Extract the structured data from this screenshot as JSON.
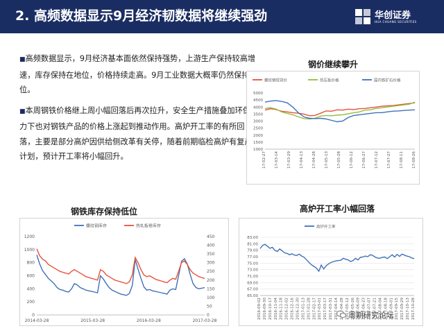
{
  "header": {
    "title": "2. 高频数据显示9月经济韧数据将继续强劲",
    "logo_name": "华创证券",
    "logo_sub": "HUA CHUANG SECURITIES"
  },
  "bullets": [
    "高频数据显示，9月经济基本面依然保持强势，上游生产保持较高增速，库存保持在地位，价格持续走高。9月工业数据大概率仍然保持高位。",
    "本周钢铁价格继上周小幅回落后再次拉升，安全生产措施叠加环保压力下也对钢铁产品的价格上涨起到推动作用。高炉开工率的有所回落，主要是部分高炉因供给侧改革有关停，随着前期临检高炉有复产计划，预计开工率将小幅回升。"
  ],
  "watermark": "周期研究论坛",
  "colors": {
    "banner": "#1a2d63",
    "series1": "#e8503a",
    "series2": "#8fbf3a",
    "series3": "#3f70b8"
  },
  "chart_data": [
    {
      "type": "line",
      "title": "钢价继续攀升",
      "series": [
        {
          "name": "螺纹钢现货价",
          "color": "#e8503a",
          "values": [
            3780,
            3880,
            3820,
            3700,
            3650,
            3600,
            3560,
            3500,
            3380,
            3400,
            3560,
            3720,
            3700,
            3800,
            3780,
            3850,
            3820,
            3880,
            3900,
            3950,
            4000,
            4050,
            4080,
            4100,
            4150,
            4200,
            4250,
            4300
          ]
        },
        {
          "name": "热压板价格",
          "color": "#8fbf3a",
          "values": [
            3900,
            3950,
            3850,
            3650,
            3550,
            3450,
            3300,
            3180,
            3150,
            3200,
            3350,
            3400,
            3380,
            3420,
            3450,
            3520,
            3600,
            3650,
            3780,
            3800,
            3900,
            3950,
            4000,
            4050,
            4100,
            4150,
            4200,
            4350
          ]
        },
        {
          "name": "国内铁矿石价格",
          "color": "#3f70b8",
          "values": [
            4350,
            4420,
            4450,
            4400,
            4300,
            4000,
            3600,
            3300,
            3200,
            3180,
            3200,
            3150,
            3050,
            2950,
            3000,
            3250,
            3400,
            3450,
            3500,
            3550,
            3600,
            3600,
            3650,
            3700,
            3720,
            3750,
            3780,
            3800
          ]
        }
      ],
      "x_ticks": [
        "17-02-27",
        "17-03-14",
        "17-03-29",
        "17-04-13",
        "17-04-28",
        "17-05-13",
        "17-05-28",
        "17-06-12",
        "17-06-27",
        "17-07-12",
        "17-07-27",
        "17-08-11",
        "17-08-26"
      ],
      "y_ticks": [
        "5000",
        "4500",
        "4000",
        "3500",
        "3000",
        "2500",
        "2000",
        "1500",
        "1000"
      ],
      "ylim": [
        1000,
        5000
      ]
    },
    {
      "type": "line",
      "title": "钢铁库存保持低位",
      "series": [
        {
          "name": "螺纹钢库存",
          "color": "#3f70b8",
          "axis": "left",
          "values": [
            920,
            780,
            680,
            620,
            560,
            520,
            480,
            420,
            390,
            380,
            360,
            350,
            400,
            480,
            460,
            420,
            400,
            380,
            370,
            360,
            350,
            340,
            600,
            550,
            480,
            420,
            380,
            360,
            340,
            320,
            310,
            300,
            330,
            450,
            850,
            700,
            560,
            430,
            380,
            390,
            370,
            360,
            350,
            340,
            330,
            320,
            380,
            400,
            390,
            600,
            820,
            860,
            780,
            620,
            480,
            420,
            400,
            410,
            420
          ]
        },
        {
          "name": "热轧板卷库存",
          "color": "#e8503a",
          "axis": "right",
          "values": [
            380,
            340,
            320,
            310,
            290,
            280,
            270,
            260,
            250,
            245,
            240,
            235,
            250,
            260,
            250,
            240,
            230,
            220,
            215,
            210,
            205,
            200,
            260,
            250,
            230,
            220,
            210,
            200,
            195,
            190,
            185,
            180,
            190,
            230,
            330,
            300,
            260,
            230,
            220,
            225,
            215,
            205,
            200,
            195,
            190,
            185,
            200,
            210,
            205,
            250,
            300,
            310,
            290,
            260,
            240,
            230,
            220,
            215,
            210
          ]
        }
      ],
      "x_ticks": [
        "2014-03-28",
        "2015-03-28",
        "2016-03-28",
        "2017-03-28"
      ],
      "y_ticks_left": [
        "1200",
        "1000",
        "800",
        "600",
        "400",
        "200",
        "0"
      ],
      "y_ticks_right": [
        "450",
        "400",
        "350",
        "300",
        "250",
        "200",
        "150",
        "100",
        "50",
        "0"
      ],
      "ylim_left": [
        0,
        1200
      ],
      "ylim_right": [
        0,
        450
      ]
    },
    {
      "type": "line",
      "title": "高炉开工率小幅回落",
      "series": [
        {
          "name": "高炉开工率",
          "color": "#3f70b8",
          "values": [
            79.5,
            80.5,
            80.8,
            80.2,
            79.6,
            79.9,
            79.0,
            78.6,
            79.4,
            78.8,
            78.2,
            78.0,
            77.6,
            77.9,
            77.5,
            77.4,
            77.8,
            77.2,
            76.8,
            76.0,
            75.2,
            74.5,
            74.0,
            73.5,
            72.5,
            74.4,
            73.2,
            74.2,
            74.8,
            75.2,
            75.5,
            75.7,
            75.8,
            75.9,
            76.5,
            76.2,
            76.0,
            75.5,
            75.8,
            76.5,
            76.0,
            76.8,
            76.9,
            77.2,
            77.0,
            77.6,
            77.4,
            76.9,
            76.6,
            76.5,
            76.8,
            76.9,
            76.4,
            77.0,
            77.6,
            76.9,
            77.7,
            77.1,
            77.8,
            77.5,
            77.2,
            77.0,
            76.6,
            76.4
          ]
        }
      ],
      "x_ticks": [
        "2016-09-02",
        "2016-09-30",
        "2016-10-17",
        "2016-11-04",
        "2016-11-18",
        "2016-12-02",
        "2016-12-16",
        "2016-12-30",
        "2017-01-13",
        "2017-01-28",
        "2017-02-17",
        "2017-03-01",
        "2017-03-17",
        "2017-03-31",
        "2017-04-14",
        "2017-04-28",
        "2017-05-12",
        "2017-05-26",
        "2017-06-09",
        "2017-06-23",
        "2017-07-07",
        "2017-07-21",
        "2017-08-04",
        "2017-08-18",
        "2017-09-01",
        "2017-09-15",
        "2017-09-29",
        "2017-10-13",
        "2017-10-28"
      ],
      "y_ticks": [
        "83.00",
        "81.00",
        "79.00",
        "77.00",
        "75.00",
        "73.00",
        "71.00",
        "69.00",
        "67.00",
        "65.00"
      ],
      "ylim": [
        65,
        83
      ]
    }
  ]
}
